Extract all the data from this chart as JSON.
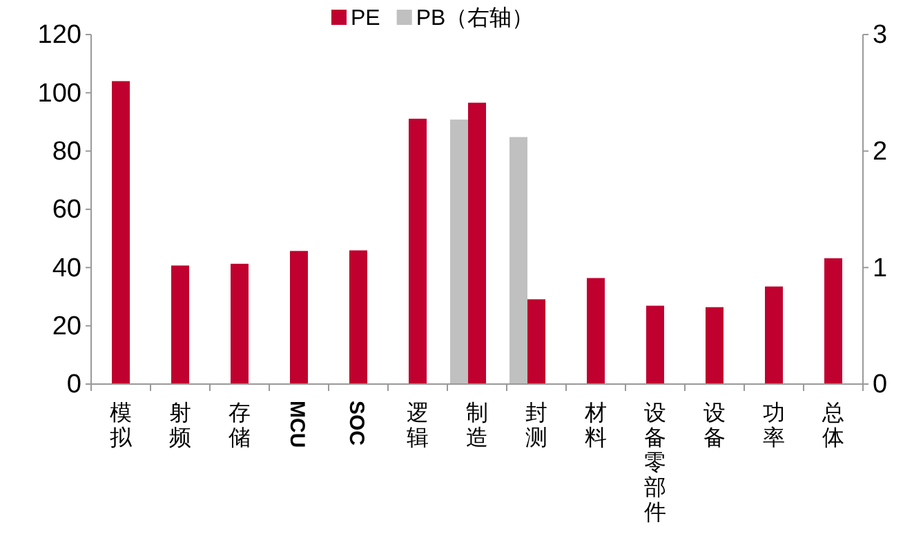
{
  "chart_data": {
    "type": "bar",
    "categories": [
      "模拟",
      "射频",
      "存储",
      "MCU",
      "SOC",
      "逻辑",
      "制造",
      "封测",
      "材料",
      "设备零部件",
      "设备",
      "功率",
      "总体"
    ],
    "series": [
      {
        "name": "PE",
        "color": "#c0002f",
        "values": [
          104,
          40.7,
          41.3,
          45.7,
          45.9,
          91.1,
          96.6,
          29.1,
          36.4,
          26.9,
          26.4,
          33.5,
          43.2
        ]
      },
      {
        "name": "PB（右轴）",
        "color": "#c0c0c0",
        "axis": "y2",
        "values": [
          null,
          null,
          null,
          null,
          null,
          null,
          2.27,
          2.12,
          null,
          null,
          null,
          null,
          null
        ]
      }
    ],
    "ylim": [
      0,
      120
    ],
    "yticks": [
      0,
      20,
      40,
      60,
      80,
      100,
      120
    ],
    "y2lim": [
      0,
      3
    ],
    "y2ticks": [
      0,
      1,
      2,
      3
    ],
    "legend": "top",
    "grid": false
  }
}
